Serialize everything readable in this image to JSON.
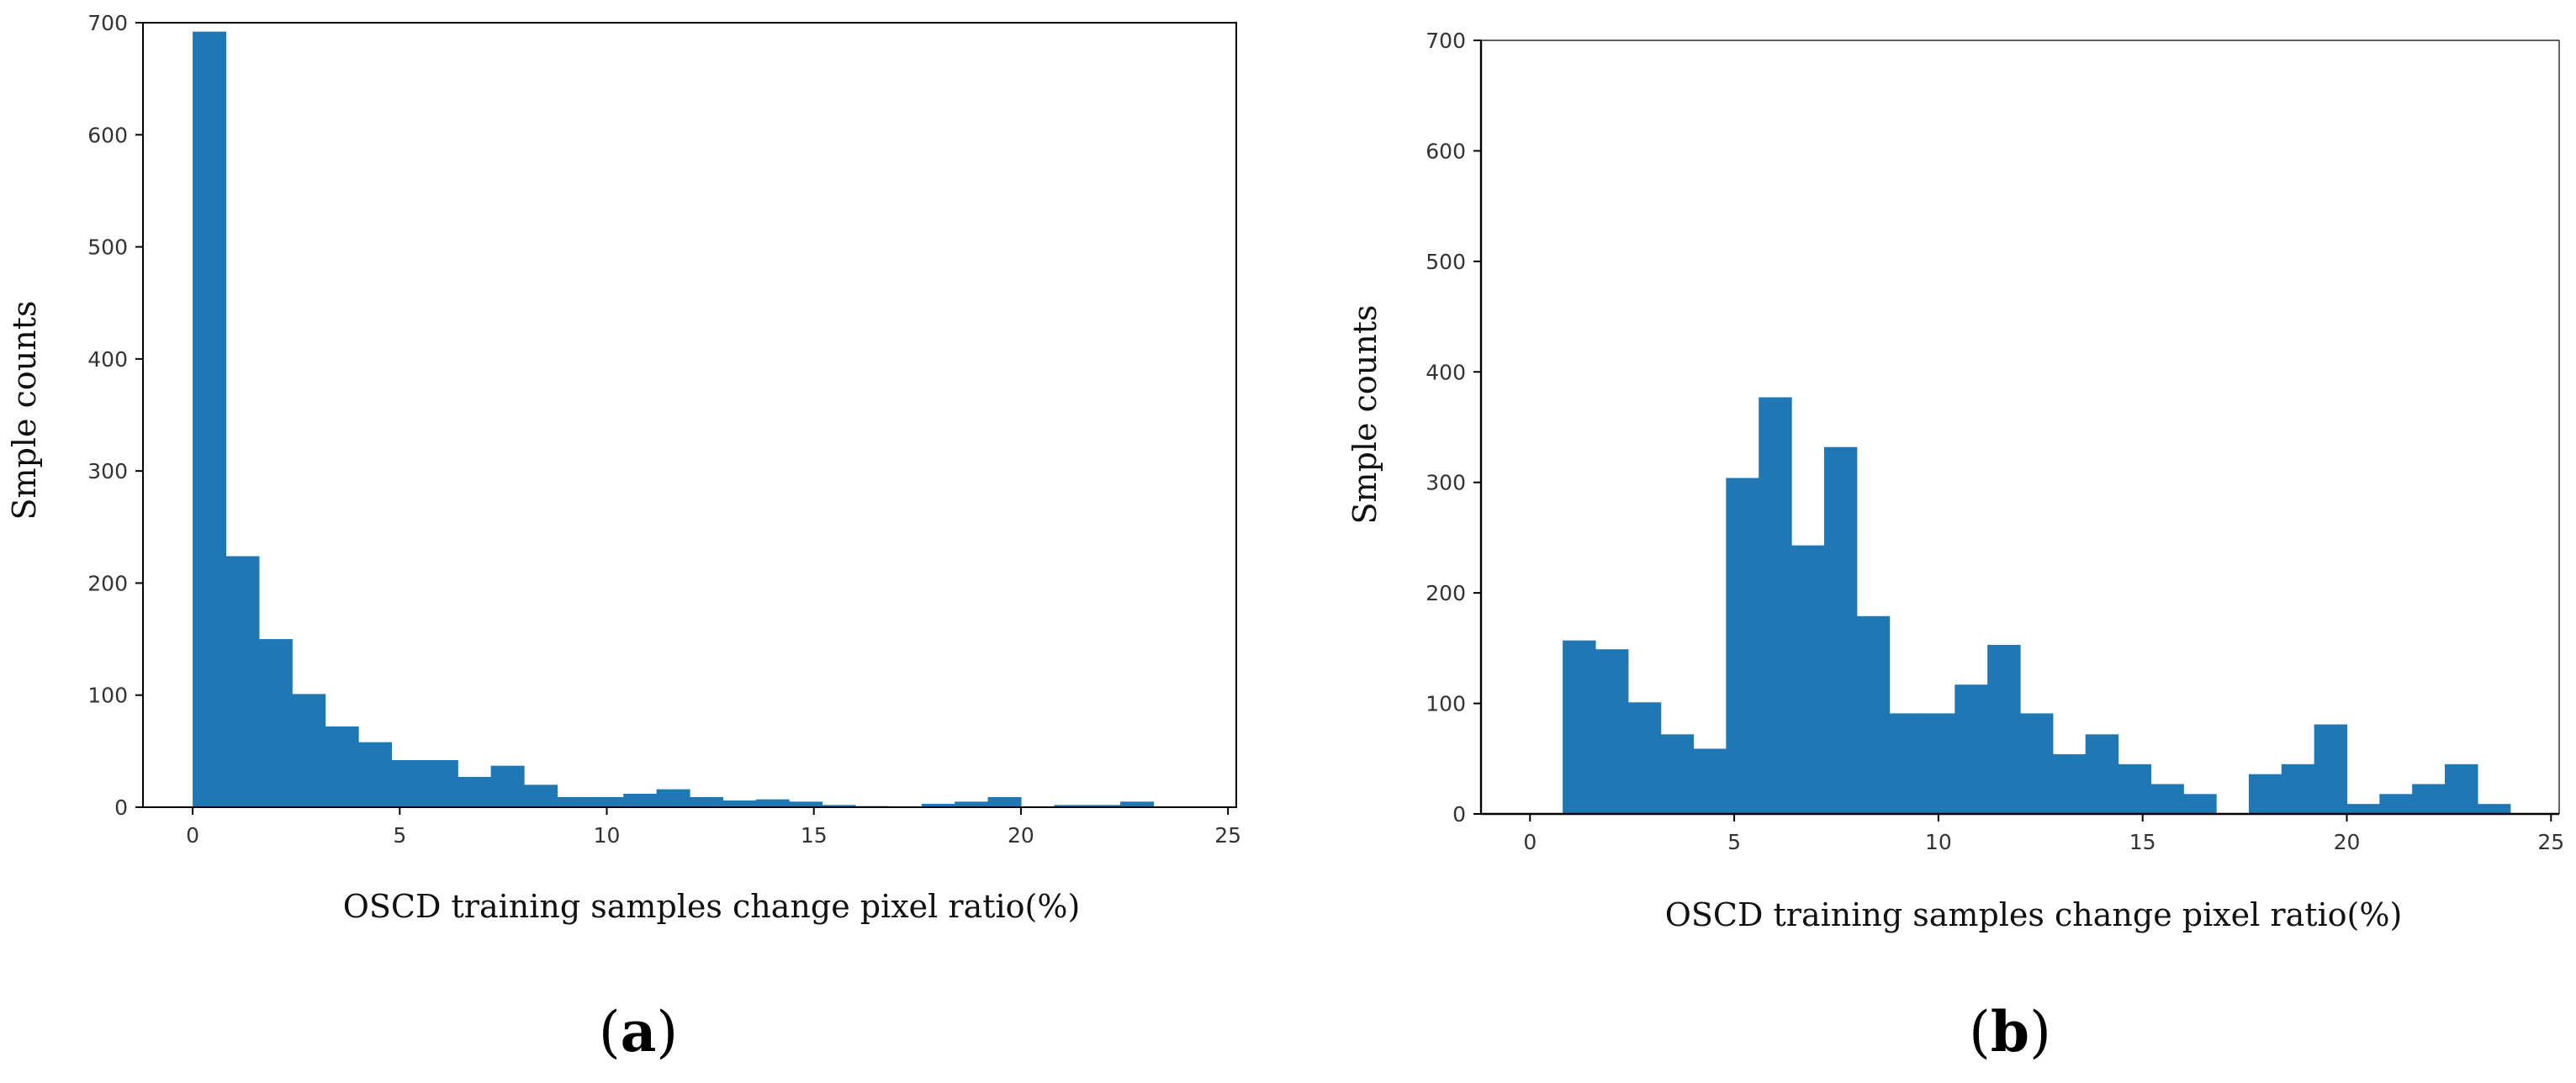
{
  "figure": {
    "bar_color": "#1f77b4",
    "axis_color": "#000000",
    "panels": [
      {
        "caption_prefix": "(",
        "caption_letter": "a",
        "caption_suffix": ")"
      },
      {
        "caption_prefix": "(",
        "caption_letter": "b",
        "caption_suffix": ")"
      }
    ]
  },
  "chart_data": [
    {
      "type": "bar",
      "id": "a",
      "title": "",
      "xlabel": "OSCD training samples change pixel ratio(%)",
      "ylabel": "Smple counts",
      "xlim": [
        -1.2,
        25.2
      ],
      "ylim": [
        0,
        700
      ],
      "xticks": [
        0,
        5,
        10,
        15,
        20,
        25
      ],
      "xtick_labels": [
        "0",
        "5",
        "10",
        "15",
        "20",
        "25"
      ],
      "yticks": [
        0,
        100,
        200,
        300,
        400,
        500,
        600,
        700
      ],
      "ytick_labels": [
        "0",
        "100",
        "200",
        "300",
        "400",
        "500",
        "600",
        "700"
      ],
      "bin_edges": [
        0,
        0.8,
        1.6,
        2.4,
        3.2,
        4.0,
        4.8,
        5.6,
        6.4,
        7.2,
        8.0,
        8.8,
        9.6,
        10.4,
        11.2,
        12.0,
        12.8,
        13.6,
        14.4,
        15.2,
        16.0,
        16.8,
        17.6,
        18.4,
        19.2,
        20.0,
        20.8,
        21.6,
        22.4,
        23.2
      ],
      "values": [
        692,
        224,
        150,
        101,
        72,
        58,
        42,
        42,
        27,
        37,
        20,
        9,
        9,
        12,
        16,
        9,
        6,
        7,
        5,
        2,
        1,
        0,
        3,
        5,
        9,
        0,
        2,
        2,
        5
      ]
    },
    {
      "type": "bar",
      "id": "b",
      "title": "",
      "xlabel": "OSCD training samples change pixel ratio(%)",
      "ylabel": "Smple counts",
      "xlim": [
        -1.2,
        25.2
      ],
      "ylim": [
        0,
        700
      ],
      "xticks": [
        0,
        5,
        10,
        15,
        20,
        25
      ],
      "xtick_labels": [
        "0",
        "5",
        "10",
        "15",
        "20",
        "25"
      ],
      "yticks": [
        0,
        100,
        200,
        300,
        400,
        500,
        600,
        700
      ],
      "ytick_labels": [
        "0",
        "100",
        "200",
        "300",
        "400",
        "500",
        "600",
        "700"
      ],
      "bin_edges": [
        0.8,
        1.6,
        2.4,
        3.2,
        4.0,
        4.8,
        5.6,
        6.4,
        7.2,
        8.0,
        8.8,
        9.6,
        10.4,
        11.2,
        12.0,
        12.8,
        13.6,
        14.4,
        15.2,
        16.0,
        16.8,
        17.6,
        18.4,
        19.2,
        20.0,
        20.8,
        21.6,
        22.4,
        23.2,
        24.0
      ],
      "values": [
        157,
        149,
        101,
        72,
        59,
        304,
        377,
        243,
        332,
        179,
        91,
        91,
        117,
        153,
        91,
        54,
        72,
        45,
        27,
        18,
        0,
        36,
        45,
        81,
        9,
        18,
        27,
        45,
        9
      ]
    }
  ]
}
